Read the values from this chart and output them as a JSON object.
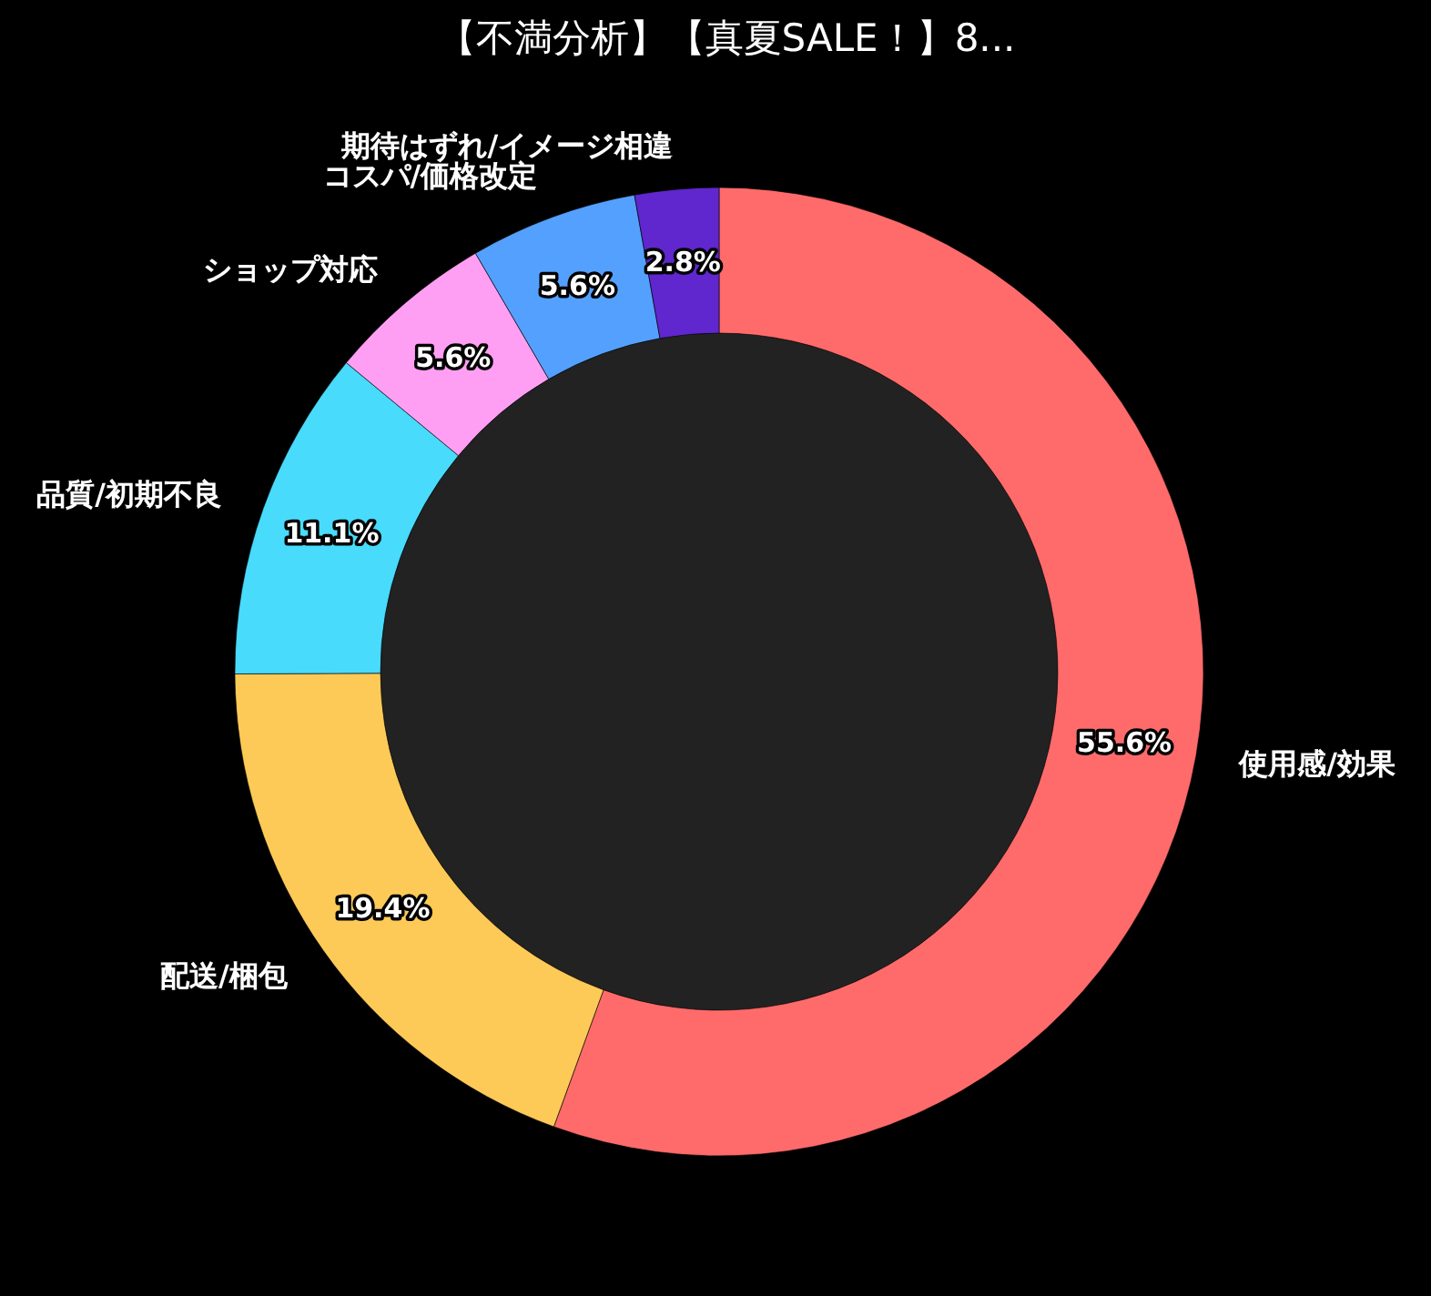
{
  "chart_data": {
    "type": "donut",
    "title": "【不満分析】【真夏SALE！】8...",
    "categories": [
      "使用感/効果",
      "配送/梱包",
      "品質/初期不良",
      "ショップ対応",
      "コスパ/価格改定",
      "期待はずれ/イメージ相違"
    ],
    "values": [
      55.6,
      19.4,
      11.1,
      5.6,
      5.6,
      2.8
    ],
    "colors": [
      "#ff6b6b",
      "#feca57",
      "#48dbfb",
      "#ff9ff3",
      "#54a0ff",
      "#5f27cd"
    ],
    "value_labels": [
      "55.6%",
      "19.4%",
      "11.1%",
      "5.6%",
      "5.6%",
      "2.8%"
    ]
  }
}
